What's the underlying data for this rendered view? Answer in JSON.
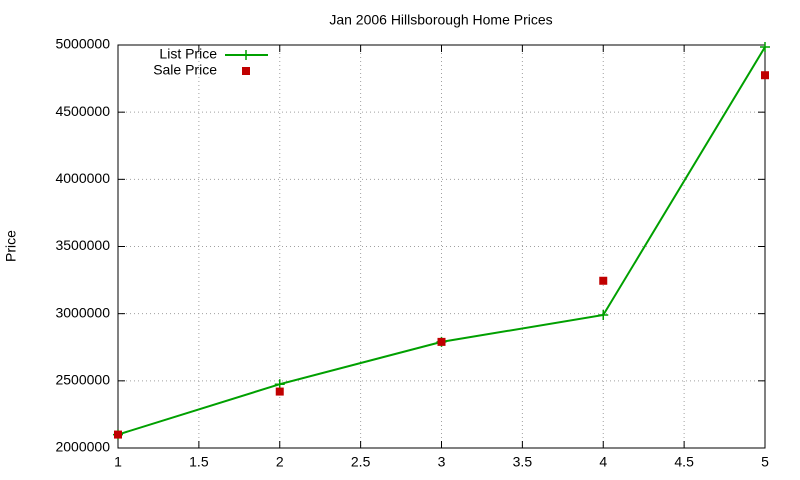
{
  "chart_data": {
    "type": "line",
    "title": "Jan 2006 Hillsborough Home Prices",
    "ylabel": "Price",
    "x": [
      1,
      2,
      3,
      4,
      5
    ],
    "series": [
      {
        "name": "List Price",
        "color": "#00a000",
        "mode": "lines+points",
        "marker": "plus",
        "values": [
          2100000,
          2475000,
          2790000,
          2990000,
          4985000
        ]
      },
      {
        "name": "Sale Price",
        "color": "#c00000",
        "mode": "points",
        "marker": "square",
        "values": [
          2100000,
          2420000,
          2790000,
          3245000,
          4775000
        ]
      }
    ],
    "xlim": [
      1,
      5
    ],
    "xticks": [
      1,
      1.5,
      2,
      2.5,
      3,
      3.5,
      4,
      4.5,
      5
    ],
    "ylim": [
      2000000,
      5000000
    ],
    "yticks": [
      2000000,
      2500000,
      3000000,
      3500000,
      4000000,
      4500000,
      5000000
    ],
    "grid": true,
    "legend": "top-left"
  }
}
